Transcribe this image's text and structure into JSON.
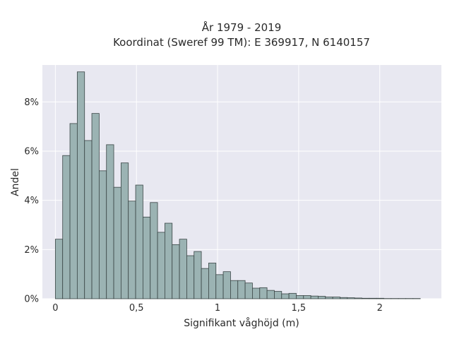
{
  "chart_data": {
    "type": "bar",
    "title_lines": [
      "År 1979 - 2019",
      "Koordinat (Sweref 99 TM): E 369917, N 6140157"
    ],
    "xlabel": "Signifikant våghöjd (m)",
    "ylabel": "Andel",
    "xlim": [
      -0.08,
      2.38
    ],
    "ylim": [
      0,
      9.5
    ],
    "x_ticks": [
      0,
      0.5,
      1,
      1.5,
      2
    ],
    "x_tick_labels": [
      "0",
      "0,5",
      "1",
      "1,5",
      "2"
    ],
    "y_ticks": [
      0,
      2,
      4,
      6,
      8
    ],
    "y_tick_labels": [
      "0%",
      "2%",
      "4%",
      "6%",
      "8%"
    ],
    "grid": true,
    "bin_width": 0.045,
    "bin_start": 0.0,
    "values": [
      2.42,
      5.82,
      7.12,
      9.22,
      6.43,
      7.53,
      5.2,
      6.26,
      4.53,
      5.52,
      3.97,
      4.62,
      3.32,
      3.91,
      2.7,
      3.07,
      2.2,
      2.42,
      1.75,
      1.92,
      1.23,
      1.45,
      0.98,
      1.1,
      0.74,
      0.74,
      0.64,
      0.43,
      0.45,
      0.34,
      0.3,
      0.2,
      0.22,
      0.13,
      0.13,
      0.11,
      0.1,
      0.07,
      0.07,
      0.05,
      0.04,
      0.03,
      0.02,
      0.02,
      0.02,
      0.01,
      0.01,
      0.01,
      0.01,
      0.01
    ],
    "colors": {
      "plot_background": "#e8e8f1",
      "grid": "#ffffff",
      "bar_fill": "#9bb3b3",
      "bar_edge": "#3a4545"
    }
  }
}
